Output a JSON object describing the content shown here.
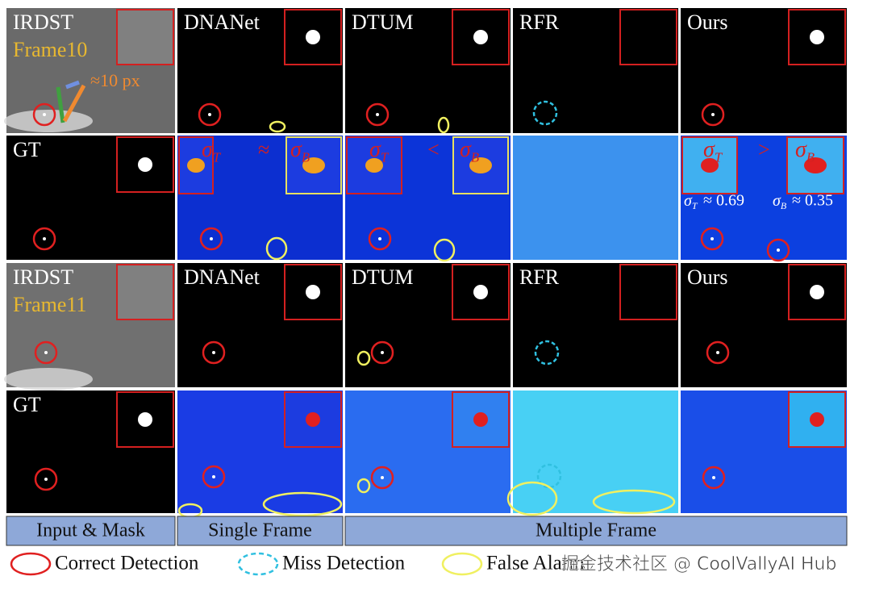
{
  "figure": {
    "rows": [
      {
        "labels": [
          "IRDST",
          "DNANet",
          "DTUM",
          "RFR",
          "Ours"
        ],
        "frame": "Frame10",
        "scale_note": "≈10 px"
      },
      {
        "labels": [
          "GT"
        ],
        "compare": [
          {
            "left": {
              "sym": "σ",
              "sub": "T"
            },
            "op": "≈",
            "right": {
              "sym": "σ",
              "sub": "B"
            }
          },
          {
            "left": {
              "sym": "σ",
              "sub": "T"
            },
            "op": "<",
            "right": {
              "sym": "σ",
              "sub": "B"
            }
          },
          {
            "left": {
              "sym": "σ",
              "sub": "T"
            },
            "op": ">",
            "right": {
              "sym": "σ",
              "sub": "B"
            }
          }
        ],
        "estimates": [
          {
            "sym": "σ",
            "sub": "T",
            "value": "≈ 0.69"
          },
          {
            "sym": "σ",
            "sub": "B",
            "value": "≈ 0.35"
          }
        ]
      },
      {
        "labels": [
          "IRDST",
          "DNANet",
          "DTUM",
          "RFR",
          "Ours"
        ],
        "frame": "Frame11"
      },
      {
        "labels": [
          "GT"
        ]
      }
    ],
    "groups": [
      "Input & Mask",
      "Single Frame",
      "Multiple Frame"
    ],
    "legend": [
      "Correct Detection",
      "Miss Detection",
      "False Alarm"
    ],
    "watermark": "掘金技术社区 @ CoolVallyAI Hub"
  }
}
